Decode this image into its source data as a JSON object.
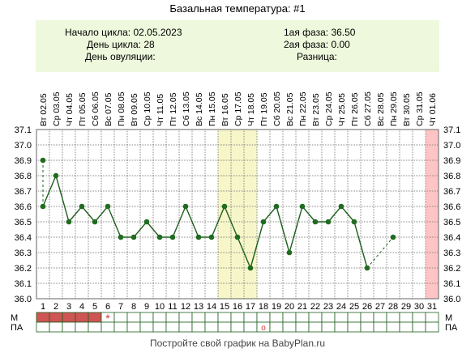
{
  "page_title": "Базальная температура: #1",
  "info": {
    "cycle_start_label": "Начало цикла:",
    "cycle_start_value": "02.05.2023",
    "cycle_day_label": "День цикла:",
    "cycle_day_value": "28",
    "ovulation_day_label": "День овуляции:",
    "ovulation_day_value": "",
    "phase1_label": "1ая фаза:",
    "phase1_value": "36.50",
    "phase2_label": "2ая фаза:",
    "phase2_value": "0.00",
    "difference_label": "Разница:",
    "difference_value": ""
  },
  "row_labels": {
    "m": "М",
    "pa": "ПА"
  },
  "footer": "Постройте свой график на BabyPlan.ru",
  "colors": {
    "line": "#1f5f1f",
    "point": "#1f6b1f",
    "grid": "#8a8a8a",
    "highlight_fill": "#f6f6c8",
    "pink_fill": "#ffc4c4",
    "period_fill": "#cf5454",
    "info_bg": "#eef8dc",
    "star": "#d33333"
  },
  "chart_data": {
    "type": "line",
    "title": "Базальная температура: #1",
    "ylim": [
      36.0,
      37.1
    ],
    "y_ticks": [
      "37.1",
      "37.0",
      "36.9",
      "36.8",
      "36.7",
      "36.6",
      "36.5",
      "36.4",
      "36.3",
      "36.2",
      "36.1",
      "36.0"
    ],
    "x_days": [
      "1",
      "2",
      "3",
      "4",
      "5",
      "6",
      "7",
      "8",
      "9",
      "10",
      "11",
      "12",
      "13",
      "14",
      "15",
      "16",
      "17",
      "18",
      "19",
      "20",
      "21",
      "22",
      "23",
      "24",
      "25",
      "26",
      "27",
      "28",
      "29",
      "30",
      "31"
    ],
    "dates": [
      "02.05",
      "03.05",
      "04.05",
      "05.05",
      "06.05",
      "07.05",
      "08.05",
      "09.05",
      "10.05",
      "11.05",
      "12.05",
      "13.05",
      "14.05",
      "15.05",
      "16.05",
      "17.05",
      "18.05",
      "19.05",
      "20.05",
      "21.05",
      "22.05",
      "23.05",
      "24.05",
      "25.05",
      "26.05",
      "27.05",
      "28.05",
      "29.05",
      "30.05",
      "31.05",
      "01.06"
    ],
    "weekdays": [
      "Вт",
      "Ср",
      "Чт",
      "Пт",
      "Сб",
      "Вс",
      "Пн",
      "Вт",
      "Ср",
      "Чт",
      "Пт",
      "Сб",
      "Вс",
      "Пн",
      "Вт",
      "Ср",
      "Чт",
      "Пт",
      "Сб",
      "Вс",
      "Пн",
      "Вт",
      "Ср",
      "Чт",
      "Пт",
      "Сб",
      "Вс",
      "Пн",
      "Вт",
      "Ср",
      "Чт"
    ],
    "values": [
      36.6,
      36.8,
      36.5,
      36.6,
      36.5,
      36.6,
      36.4,
      36.4,
      36.5,
      36.4,
      36.4,
      36.6,
      36.4,
      36.4,
      36.6,
      36.4,
      36.2,
      36.5,
      36.6,
      36.3,
      36.6,
      36.5,
      36.5,
      36.6,
      36.5,
      36.2,
      null,
      36.4,
      null,
      null,
      null
    ],
    "extra_points": [
      {
        "day": 1,
        "value": 36.9
      }
    ],
    "dashed_segments": [
      [
        1,
        36.9,
        1,
        36.6
      ],
      [
        26,
        36.2,
        28,
        36.4
      ]
    ],
    "highlight_days": [
      15,
      16,
      17
    ],
    "pink_days": [
      31
    ],
    "m_row_period_days": [
      1,
      2,
      3,
      4,
      5
    ],
    "m_row_star_day": 6,
    "m_row_star_symbol": "*",
    "pa_row_circle_day": 18,
    "pa_row_circle_symbol": "o"
  }
}
